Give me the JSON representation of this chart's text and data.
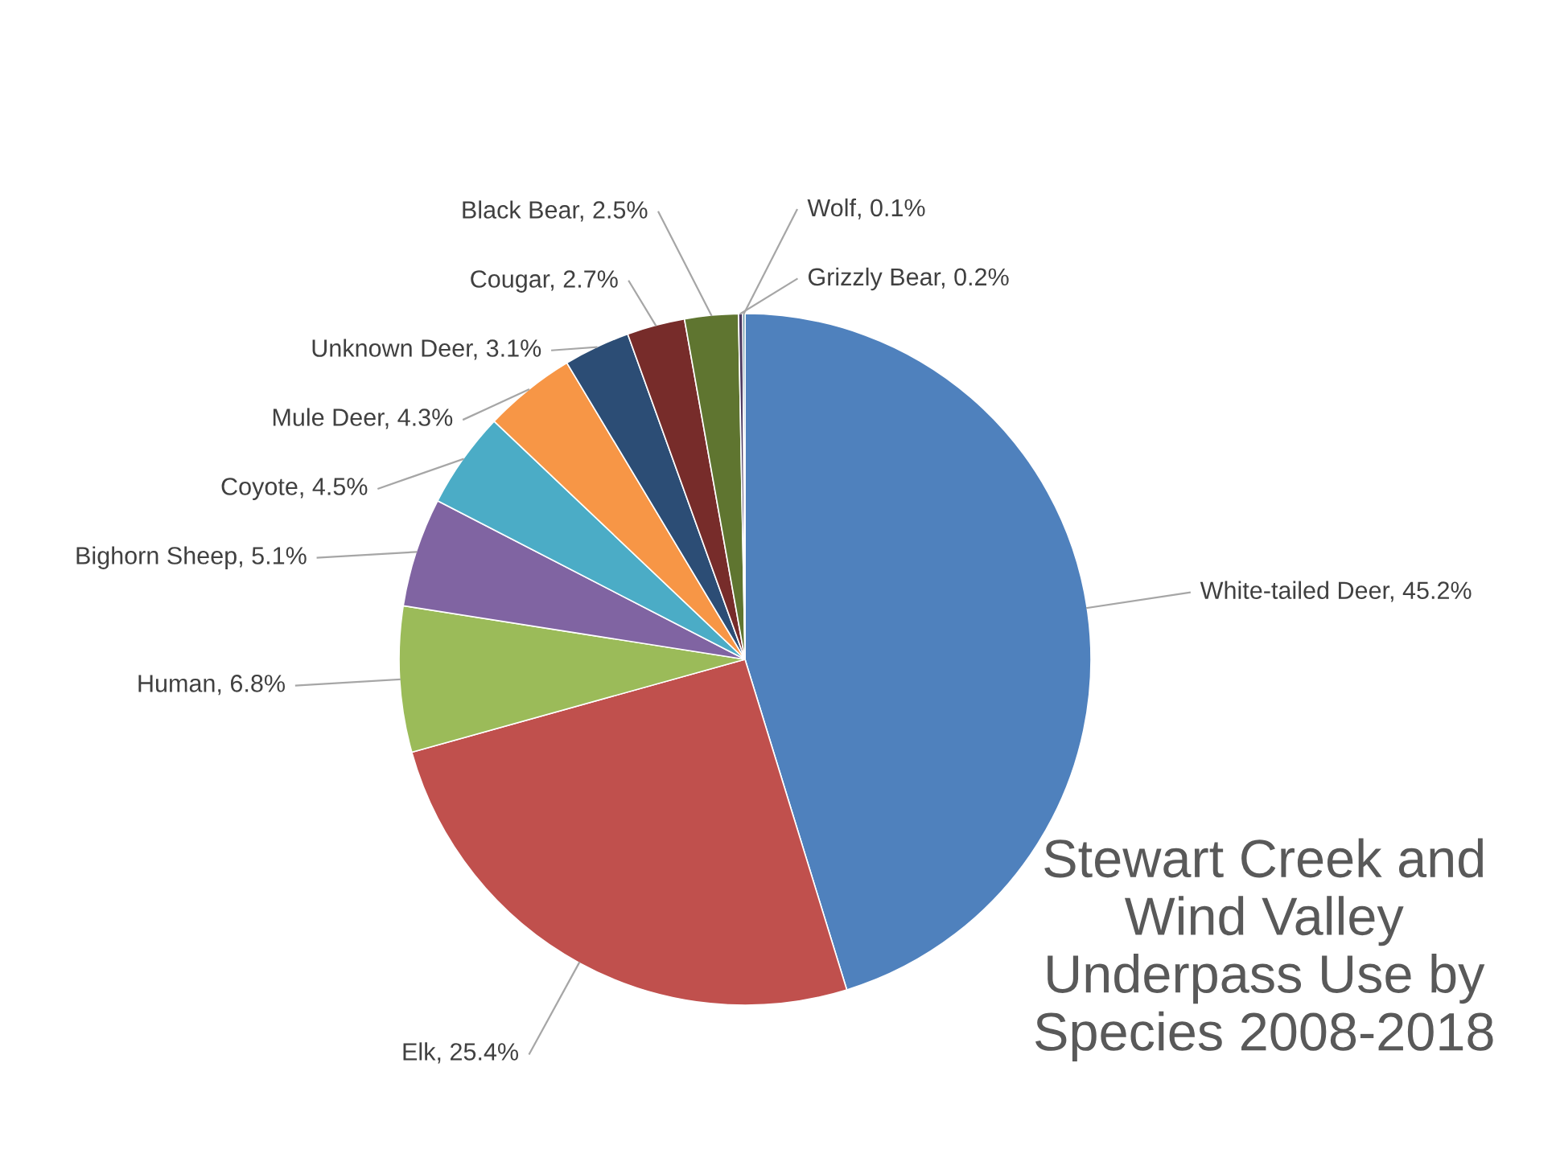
{
  "chart_data": {
    "type": "pie",
    "title": "Stewart Creek and Wind Valley Underpass Use by Species 2008-2018",
    "categories": [
      "White-tailed Deer",
      "Elk",
      "Human",
      "Bighorn Sheep",
      "Coyote",
      "Mule Deer",
      "Unknown Deer",
      "Cougar",
      "Black Bear",
      "Grizzly Bear",
      "Wolf"
    ],
    "values": [
      45.2,
      25.4,
      6.8,
      5.1,
      4.5,
      4.3,
      3.1,
      2.7,
      2.5,
      0.2,
      0.1
    ],
    "value_labels": [
      "45.2%",
      "25.4%",
      "6.8%",
      "5.1%",
      "4.5%",
      "4.3%",
      "3.1%",
      "2.7%",
      "2.5%",
      "0.2%",
      "0.1%"
    ],
    "colors": [
      "#4f81bd",
      "#c0504d",
      "#9bbb59",
      "#8064a2",
      "#4bacc6",
      "#f79646",
      "#2c4d75",
      "#772c2a",
      "#5f7530",
      "#4d3b62",
      "#276a7c"
    ]
  }
}
